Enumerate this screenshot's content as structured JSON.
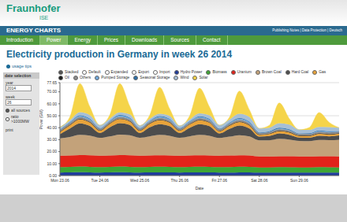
{
  "page": {
    "logo": {
      "name": "Fraunhofer",
      "institute": "ISE"
    },
    "header": {
      "title": "ENERGY CHARTS",
      "links": "Publishing Notes | Data Protection | Deutsch"
    },
    "nav": {
      "items": [
        "Introduction",
        "Power",
        "Energy",
        "Prices",
        "Downloads",
        "Sources",
        "Contact"
      ],
      "active": "Power"
    },
    "usage_tips": "usage tips",
    "sidebar": {
      "title": "date selection",
      "fields": [
        {
          "label": "year",
          "value": "2014"
        },
        {
          "label": "week",
          "value": "26"
        }
      ],
      "options": [
        "all sources",
        "ratio >1000MW"
      ],
      "print": "print"
    },
    "modes": [
      "Stacked",
      "Default",
      "Expanded",
      "Export",
      "Import"
    ],
    "active_mode": "Stacked"
  },
  "chart_data": {
    "type": "area",
    "stacked": true,
    "title": "Electricity production in Germany in week 26 2014",
    "x_label": "Date",
    "y_label": "Power (GW)",
    "x": [
      0,
      6,
      12,
      18,
      24,
      30,
      36,
      42,
      48,
      54,
      60,
      66,
      72,
      78,
      84,
      90,
      96,
      102,
      108,
      114,
      120,
      126,
      132,
      138,
      144,
      150,
      156,
      162,
      168
    ],
    "xlim": [
      0,
      168
    ],
    "xticks": [
      {
        "value": 0,
        "label": "Mon 23.06"
      },
      {
        "value": 24,
        "label": "Tue 24.06"
      },
      {
        "value": 48,
        "label": "Wed 25.06"
      },
      {
        "value": 72,
        "label": "Thu 26.06"
      },
      {
        "value": 96,
        "label": "Fri 27.06"
      },
      {
        "value": 120,
        "label": "Sat 28.06"
      },
      {
        "value": 144,
        "label": "Sun 29.06"
      }
    ],
    "ylim": [
      0,
      77.65
    ],
    "yticks": [
      {
        "value": 0,
        "label": "0.00"
      },
      {
        "value": 10,
        "label": "10.00"
      },
      {
        "value": 20,
        "label": "20.00"
      },
      {
        "value": 30,
        "label": "30.00"
      },
      {
        "value": 40,
        "label": "40.00"
      },
      {
        "value": 50,
        "label": "50.00"
      },
      {
        "value": 60,
        "label": "60.00"
      },
      {
        "value": 70,
        "label": "70.00"
      },
      77.65
    ],
    "grid": true,
    "series": [
      {
        "name": "Hydro Power",
        "color": "#1f3c9c",
        "values": [
          2.5,
          2.6,
          2.8,
          2.7,
          2.5,
          2.6,
          2.8,
          2.7,
          2.5,
          2.6,
          2.7,
          2.6,
          2.5,
          2.6,
          2.7,
          2.6,
          2.5,
          2.5,
          2.7,
          2.6,
          2.4,
          2.4,
          2.5,
          2.5,
          2.4,
          2.4,
          2.5,
          2.5,
          2.4
        ]
      },
      {
        "name": "Biomass",
        "color": "#3fa535",
        "values": [
          4.5,
          4.6,
          4.7,
          4.6,
          4.5,
          4.6,
          4.7,
          4.6,
          4.5,
          4.6,
          4.7,
          4.6,
          4.5,
          4.6,
          4.7,
          4.6,
          4.5,
          4.6,
          4.7,
          4.6,
          4.4,
          4.4,
          4.5,
          4.4,
          4.4,
          4.4,
          4.5,
          4.4,
          4.4
        ]
      },
      {
        "name": "Uranium",
        "color": "#e2231a",
        "values": [
          9.6,
          9.6,
          9.6,
          9.6,
          9.6,
          9.6,
          9.6,
          9.6,
          9.6,
          9.6,
          9.6,
          9.6,
          9.6,
          9.6,
          9.6,
          9.6,
          9.6,
          9.6,
          9.6,
          9.6,
          9.2,
          9.2,
          9.2,
          9.2,
          9.2,
          9.2,
          9.2,
          9.2,
          9.2
        ]
      },
      {
        "name": "Brown Coal",
        "color": "#c3a27a",
        "values": [
          14.5,
          15.5,
          17,
          16.5,
          15,
          16,
          17.2,
          16.8,
          15,
          16,
          17,
          16.5,
          15,
          16,
          17,
          16.5,
          14.8,
          15.8,
          16.8,
          16,
          13.5,
          13.5,
          14.5,
          14,
          13,
          12.8,
          13.5,
          13.5,
          14
        ]
      },
      {
        "name": "Hard Coal",
        "color": "#4d4d4d",
        "values": [
          3.5,
          7,
          9.5,
          8,
          4,
          7.5,
          9.5,
          8.5,
          4,
          7.5,
          9,
          8,
          4,
          7,
          9,
          8,
          3.8,
          6.5,
          8,
          6.5,
          3,
          3.5,
          4.5,
          4,
          2.8,
          2.8,
          3.5,
          3.2,
          3.5
        ]
      },
      {
        "name": "Gas",
        "color": "#e8a33a",
        "values": [
          1.8,
          2.8,
          3.5,
          3,
          2,
          3,
          3.5,
          3,
          2,
          3,
          3.4,
          3,
          2,
          2.9,
          3.3,
          2.9,
          1.9,
          2.7,
          3,
          2.6,
          1.5,
          1.8,
          2,
          1.9,
          1.4,
          1.5,
          1.8,
          1.6,
          1.6
        ]
      },
      {
        "name": "Oil",
        "color": "#1a1a1a",
        "values": [
          0.3,
          0.3,
          0.3,
          0.3,
          0.3,
          0.3,
          0.3,
          0.3,
          0.3,
          0.3,
          0.3,
          0.3,
          0.3,
          0.3,
          0.3,
          0.3,
          0.3,
          0.3,
          0.3,
          0.3,
          0.3,
          0.3,
          0.3,
          0.3,
          0.3,
          0.3,
          0.3,
          0.3,
          0.3
        ]
      },
      {
        "name": "Others",
        "color": "#8c8c8c",
        "values": [
          1.5,
          1.5,
          1.5,
          1.5,
          1.5,
          1.5,
          1.5,
          1.5,
          1.5,
          1.5,
          1.5,
          1.5,
          1.5,
          1.5,
          1.5,
          1.5,
          1.5,
          1.5,
          1.5,
          1.5,
          1.4,
          1.4,
          1.4,
          1.4,
          1.4,
          1.4,
          1.4,
          1.4,
          1.4
        ]
      },
      {
        "name": "Pumped Storage",
        "color": "#6fa8dc",
        "values": [
          0,
          0.4,
          1,
          0.9,
          0,
          0.4,
          1,
          0.9,
          0,
          0.4,
          1,
          0.9,
          0,
          0.4,
          1,
          0.9,
          0,
          0.4,
          1,
          0.9,
          0,
          0.2,
          0.5,
          0.5,
          0,
          0.2,
          0.5,
          0.5,
          0
        ]
      },
      {
        "name": "Seasonal Storage",
        "color": "#2d6fa8",
        "values": [
          0.2,
          0.3,
          0.5,
          0.4,
          0.2,
          0.3,
          0.5,
          0.4,
          0.2,
          0.3,
          0.5,
          0.4,
          0.2,
          0.3,
          0.5,
          0.4,
          0.2,
          0.3,
          0.5,
          0.4,
          0.2,
          0.3,
          0.5,
          0.4,
          0.2,
          0.3,
          0.5,
          0.4,
          0.2
        ]
      },
      {
        "name": "Wind",
        "color": "#a6bfd6",
        "values": [
          2,
          1.5,
          2.5,
          3,
          2.5,
          1.8,
          2.2,
          2.8,
          2.2,
          1.6,
          2,
          2.5,
          2,
          1.5,
          2.4,
          3,
          3,
          2.5,
          3.5,
          4,
          3.5,
          3,
          3.8,
          4,
          3.2,
          2.8,
          3,
          3.5,
          3
        ]
      },
      {
        "name": "Solar",
        "color": "#f5d449",
        "values": [
          0,
          3,
          24,
          7,
          0,
          3,
          24,
          7,
          0,
          3,
          22,
          6,
          0,
          3,
          21,
          7,
          0,
          2,
          19,
          6,
          0,
          2,
          17,
          5,
          0,
          2,
          12,
          4,
          0
        ]
      }
    ]
  }
}
